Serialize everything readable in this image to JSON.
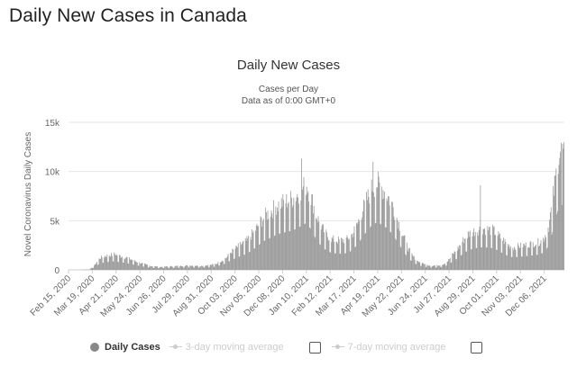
{
  "page": {
    "title": "Daily New Cases in Canada"
  },
  "chart_data": {
    "type": "bar",
    "title": "Daily New Cases",
    "subtitle_lines": [
      "Cases per Day",
      "Data as of 0:00 GMT+0"
    ],
    "ylabel": "Novel Coronavirus Daily Cases",
    "xlabel": "",
    "ylim": [
      0,
      15000
    ],
    "y_ticks": [
      "0",
      "5k",
      "10k",
      "15k"
    ],
    "x_tick_labels": [
      "Feb 15, 2020",
      "Mar 19, 2020",
      "Apr 21, 2020",
      "May 24, 2020",
      "Jun 26, 2020",
      "Jul 29, 2020",
      "Aug 31, 2020",
      "Oct 03, 2020",
      "Nov 05, 2020",
      "Dec 08, 2020",
      "Jan 10, 2021",
      "Feb 12, 2021",
      "Mar 17, 2021",
      "Apr 19, 2021",
      "May 22, 2021",
      "Jun 24, 2021",
      "Jul 27, 2021",
      "Aug 29, 2021",
      "Oct 01, 2021",
      "Nov 03, 2021",
      "Dec 06, 2021"
    ],
    "grid": true,
    "bar_color": "#999999",
    "series": [
      {
        "name": "Daily Cases",
        "x": [
          "Feb 15, 2020",
          "Mar 01, 2020",
          "Mar 15, 2020",
          "Mar 22, 2020",
          "Mar 29, 2020",
          "Apr 05, 2020",
          "Apr 12, 2020",
          "Apr 19, 2020",
          "Apr 26, 2020",
          "May 03, 2020",
          "May 10, 2020",
          "May 17, 2020",
          "May 24, 2020",
          "Jun 07, 2020",
          "Jun 21, 2020",
          "Jul 05, 2020",
          "Jul 19, 2020",
          "Aug 02, 2020",
          "Aug 16, 2020",
          "Aug 30, 2020",
          "Sep 06, 2020",
          "Sep 13, 2020",
          "Sep 20, 2020",
          "Sep 27, 2020",
          "Oct 04, 2020",
          "Oct 11, 2020",
          "Oct 18, 2020",
          "Oct 25, 2020",
          "Nov 01, 2020",
          "Nov 08, 2020",
          "Nov 15, 2020",
          "Nov 22, 2020",
          "Nov 29, 2020",
          "Dec 06, 2020",
          "Dec 13, 2020",
          "Dec 20, 2020",
          "Dec 27, 2020",
          "Jan 03, 2021",
          "Jan 10, 2021",
          "Jan 17, 2021",
          "Jan 24, 2021",
          "Jan 31, 2021",
          "Feb 07, 2021",
          "Feb 14, 2021",
          "Feb 21, 2021",
          "Feb 28, 2021",
          "Mar 07, 2021",
          "Mar 14, 2021",
          "Mar 21, 2021",
          "Mar 28, 2021",
          "Apr 04, 2021",
          "Apr 11, 2021",
          "Apr 18, 2021",
          "Apr 25, 2021",
          "May 02, 2021",
          "May 09, 2021",
          "May 16, 2021",
          "May 23, 2021",
          "May 30, 2021",
          "Jun 06, 2021",
          "Jun 13, 2021",
          "Jun 20, 2021",
          "Jun 27, 2021",
          "Jul 04, 2021",
          "Jul 11, 2021",
          "Jul 18, 2021",
          "Jul 25, 2021",
          "Aug 01, 2021",
          "Aug 08, 2021",
          "Aug 15, 2021",
          "Aug 22, 2021",
          "Aug 29, 2021",
          "Sep 05, 2021",
          "Sep 12, 2021",
          "Sep 19, 2021",
          "Sep 26, 2021",
          "Oct 03, 2021",
          "Oct 10, 2021",
          "Oct 17, 2021",
          "Oct 24, 2021",
          "Oct 31, 2021",
          "Nov 07, 2021",
          "Nov 14, 2021",
          "Nov 21, 2021",
          "Nov 28, 2021",
          "Dec 05, 2021",
          "Dec 12, 2021",
          "Dec 19, 2021",
          "Dec 26, 2021"
        ],
        "values": [
          0,
          0,
          50,
          500,
          1200,
          1400,
          1500,
          1600,
          1400,
          1300,
          1100,
          900,
          700,
          400,
          300,
          350,
          400,
          450,
          400,
          500,
          600,
          900,
          1200,
          1800,
          2200,
          2600,
          2900,
          3500,
          4200,
          5000,
          5600,
          6000,
          6500,
          6800,
          7000,
          7200,
          7600,
          8200,
          8700,
          7200,
          5400,
          4300,
          3500,
          3100,
          3000,
          3000,
          3100,
          3600,
          4600,
          6000,
          7200,
          8400,
          8800,
          8300,
          7600,
          6600,
          5100,
          3700,
          2300,
          1400,
          900,
          650,
          480,
          430,
          450,
          550,
          900,
          1600,
          2200,
          3000,
          3600,
          3900,
          4100,
          4200,
          4100,
          4000,
          3500,
          3000,
          2500,
          2300,
          2400,
          2500,
          2600,
          2700,
          2800,
          3200,
          4500,
          8000,
          12000
        ],
        "peak_labels": [
          {
            "x": "Jan 03, 2021",
            "value": 11300
          },
          {
            "x": "Apr 12, 2021",
            "value": 11000
          },
          {
            "x": "Sep 08, 2021",
            "value": 8600
          },
          {
            "x": "Dec 31, 2021",
            "value": 12800
          }
        ]
      }
    ],
    "legend": {
      "placement": "bottom",
      "items": [
        {
          "label": "Daily Cases",
          "enabled": true,
          "color": "#888888"
        },
        {
          "label": "3-day moving average",
          "enabled": false,
          "color": "#cccccc"
        },
        {
          "label": "7-day moving average",
          "enabled": false,
          "color": "#cccccc"
        }
      ]
    }
  }
}
